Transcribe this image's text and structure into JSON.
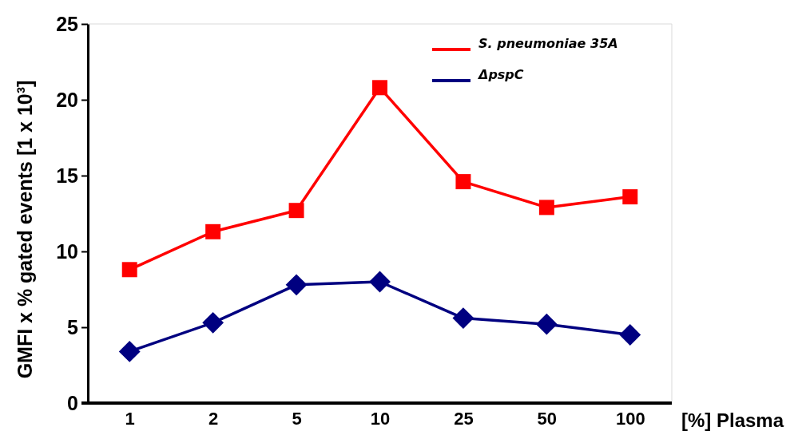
{
  "chart_data": {
    "type": "line",
    "xlabel": "[%] Plasma",
    "ylabel": "GMFI x % gated events [1 x 10³]",
    "categories": [
      "1",
      "2",
      "5",
      "10",
      "25",
      "50",
      "100"
    ],
    "series": [
      {
        "name": "S. pneumoniae 35A",
        "color": "#ff0000",
        "marker": "square",
        "values": [
          8.8,
          11.3,
          12.7,
          20.8,
          14.6,
          12.9,
          13.6
        ]
      },
      {
        "name": "ΔpspC",
        "color": "#000080",
        "marker": "diamond",
        "values": [
          3.4,
          5.3,
          7.8,
          8.0,
          5.6,
          5.2,
          4.5
        ]
      }
    ],
    "ylim": [
      0,
      25
    ],
    "yticks": [
      0,
      5,
      10,
      15,
      20,
      25
    ],
    "grid": false,
    "legend": "top right"
  }
}
